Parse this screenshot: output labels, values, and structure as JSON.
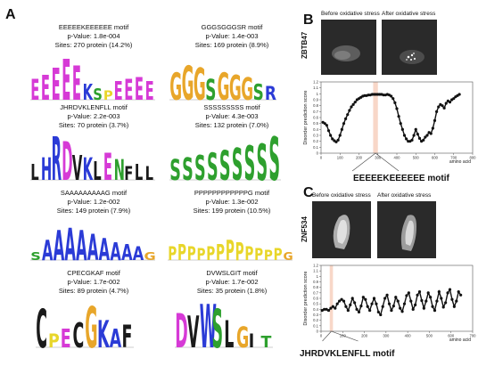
{
  "panel_a": {
    "letter": "A",
    "motifs": [
      {
        "name": "EEEEEKEEEEEE motif",
        "pvalue": "p-Value: 1.8e-004",
        "sites": "Sites: 270 protein (14.2%)",
        "logo": {
          "letters": [
            "E",
            "E",
            "E",
            "E",
            "E",
            "K",
            "S",
            "P",
            "E",
            "E",
            "E",
            "E"
          ],
          "colors": [
            "#d63ad6",
            "#d63ad6",
            "#d63ad6",
            "#d63ad6",
            "#d63ad6",
            "#2b3bd6",
            "#2ea02e",
            "#e8d62a",
            "#d63ad6",
            "#d63ad6",
            "#d63ad6",
            "#d63ad6"
          ],
          "heights": [
            0.45,
            0.55,
            0.7,
            0.9,
            0.75,
            0.35,
            0.25,
            0.2,
            0.4,
            0.45,
            0.5,
            0.4
          ]
        }
      },
      {
        "name": "GGGSGGGSR motif",
        "pvalue": "p-Value: 1.4e-003",
        "sites": "Sites: 169 protein (8.9%)",
        "logo": {
          "letters": [
            "G",
            "G",
            "G",
            "S",
            "G",
            "G",
            "G",
            "S",
            "R"
          ],
          "colors": [
            "#e8a62a",
            "#e8a62a",
            "#e8a62a",
            "#2ea02e",
            "#e8a62a",
            "#e8a62a",
            "#e8a62a",
            "#2ea02e",
            "#2b3bd6"
          ],
          "heights": [
            0.6,
            0.75,
            0.7,
            0.45,
            0.6,
            0.55,
            0.5,
            0.35,
            0.3
          ]
        }
      },
      {
        "name": "JHRDVKLENFLL motif",
        "pvalue": "p-Value: 2.2e-003",
        "sites": "Sites: 70 protein (3.7%)",
        "logo": {
          "letters": [
            "L",
            "H",
            "R",
            "D",
            "V",
            "K",
            "L",
            "E",
            "N",
            "F",
            "L",
            "L"
          ],
          "colors": [
            "#1a1a1a",
            "#2b3bd6",
            "#2b3bd6",
            "#d63ad6",
            "#1a1a1a",
            "#2b3bd6",
            "#1a1a1a",
            "#d63ad6",
            "#2ea02e",
            "#1a1a1a",
            "#1a1a1a",
            "#1a1a1a"
          ],
          "heights": [
            0.35,
            0.5,
            0.95,
            0.85,
            0.55,
            0.5,
            0.4,
            0.6,
            0.45,
            0.3,
            0.35,
            0.3
          ]
        }
      },
      {
        "name": "SSSSSSSSS motif",
        "pvalue": "p-Value: 4.3e-003",
        "sites": "Sites: 132 protein (7.0%)",
        "logo": {
          "letters": [
            "S",
            "S",
            "S",
            "S",
            "S",
            "S",
            "S",
            "S",
            "S"
          ],
          "colors": [
            "#2ea02e",
            "#2ea02e",
            "#2ea02e",
            "#2ea02e",
            "#2ea02e",
            "#2ea02e",
            "#2ea02e",
            "#2ea02e",
            "#2ea02e"
          ],
          "heights": [
            0.45,
            0.5,
            0.55,
            0.6,
            0.65,
            0.7,
            0.75,
            0.8,
            0.95
          ]
        }
      },
      {
        "name": "SAAAAAAAAAG motif",
        "pvalue": "p-Value: 1.2e-002",
        "sites": "Sites: 149 protein (7.9%)",
        "logo": {
          "letters": [
            "S",
            "A",
            "A",
            "A",
            "A",
            "A",
            "A",
            "A",
            "A",
            "A",
            "G"
          ],
          "colors": [
            "#2ea02e",
            "#2b3bd6",
            "#2b3bd6",
            "#2b3bd6",
            "#2b3bd6",
            "#2b3bd6",
            "#2b3bd6",
            "#2b3bd6",
            "#2b3bd6",
            "#2b3bd6",
            "#e8a62a"
          ],
          "heights": [
            0.2,
            0.5,
            0.75,
            0.8,
            0.75,
            0.65,
            0.55,
            0.45,
            0.4,
            0.35,
            0.2
          ]
        }
      },
      {
        "name": "PPPPPPPPPPPPG motif",
        "pvalue": "p-Value: 1.3e-002",
        "sites": "Sites: 199 protein (10.5%)",
        "logo": {
          "letters": [
            "P",
            "P",
            "P",
            "P",
            "P",
            "P",
            "P",
            "P",
            "P",
            "P",
            "P",
            "P",
            "G"
          ],
          "colors": [
            "#e8d62a",
            "#e8d62a",
            "#e8d62a",
            "#e8d62a",
            "#e8d62a",
            "#e8d62a",
            "#e8d62a",
            "#e8d62a",
            "#e8d62a",
            "#e8d62a",
            "#e8d62a",
            "#e8d62a",
            "#e8a62a"
          ],
          "heights": [
            0.35,
            0.4,
            0.35,
            0.3,
            0.35,
            0.4,
            0.5,
            0.45,
            0.35,
            0.3,
            0.25,
            0.3,
            0.2
          ]
        }
      },
      {
        "name": "CPECGKAF motif",
        "pvalue": "p-Value: 1.7e-002",
        "sites": "Sites: 89 protein (4.7%)",
        "logo": {
          "letters": [
            "C",
            "P",
            "E",
            "C",
            "G",
            "K",
            "A",
            "F"
          ],
          "colors": [
            "#1a1a1a",
            "#e8d62a",
            "#d63ad6",
            "#1a1a1a",
            "#e8a62a",
            "#2b3bd6",
            "#2b3bd6",
            "#1a1a1a"
          ],
          "heights": [
            0.85,
            0.3,
            0.4,
            0.55,
            0.9,
            0.6,
            0.4,
            0.5
          ]
        }
      },
      {
        "name": "DVWSLGIT motif",
        "pvalue": "p-Value: 1.7e-002",
        "sites": "Sites: 35 protein (1.8%)",
        "logo": {
          "letters": [
            "D",
            "V",
            "W",
            "S",
            "L",
            "G",
            "I",
            "T"
          ],
          "colors": [
            "#d63ad6",
            "#1a1a1a",
            "#2b3bd6",
            "#2ea02e",
            "#1a1a1a",
            "#e8a62a",
            "#1a1a1a",
            "#2ea02e"
          ],
          "heights": [
            0.75,
            0.7,
            0.95,
            0.85,
            0.6,
            0.45,
            0.3,
            0.25
          ]
        }
      }
    ]
  },
  "panel_b": {
    "letter": "B",
    "before_label": "Before oxidative stress",
    "after_label": "After oxidative stress",
    "gene": "ZBTB47",
    "callout": "EEEEEKEEEEEE motif",
    "chart_data": {
      "type": "scatter",
      "xlabel": "amino acid",
      "ylabel": "Disorder prediction score",
      "xlim": [
        0,
        800
      ],
      "ylim": [
        0,
        1.2
      ],
      "xticks": [
        0,
        100,
        200,
        300,
        400,
        500,
        600,
        700,
        800
      ],
      "yticks": [
        0,
        0.1,
        0.2,
        0.3,
        0.4,
        0.5,
        0.6,
        0.7,
        0.8,
        0.9,
        1,
        1.1,
        1.2
      ],
      "highlight_x": [
        275,
        300
      ],
      "x": [
        10,
        20,
        30,
        40,
        50,
        60,
        70,
        80,
        90,
        100,
        110,
        120,
        130,
        140,
        150,
        160,
        170,
        180,
        190,
        200,
        210,
        220,
        230,
        240,
        250,
        260,
        270,
        280,
        290,
        300,
        310,
        320,
        330,
        340,
        350,
        360,
        370,
        380,
        390,
        400,
        410,
        420,
        430,
        440,
        450,
        460,
        470,
        480,
        490,
        500,
        510,
        520,
        530,
        540,
        550,
        560,
        570,
        580,
        590,
        600,
        610,
        620,
        630,
        640,
        650,
        660,
        670,
        680,
        690,
        700,
        710,
        720,
        730
      ],
      "y": [
        0.52,
        0.5,
        0.47,
        0.38,
        0.3,
        0.24,
        0.21,
        0.19,
        0.22,
        0.3,
        0.4,
        0.5,
        0.58,
        0.65,
        0.72,
        0.78,
        0.82,
        0.86,
        0.9,
        0.92,
        0.94,
        0.96,
        0.97,
        0.97,
        0.98,
        0.98,
        0.99,
        0.99,
        0.99,
        0.99,
        0.99,
        0.99,
        0.98,
        0.98,
        0.99,
        0.98,
        0.96,
        0.92,
        0.85,
        0.75,
        0.62,
        0.5,
        0.4,
        0.3,
        0.24,
        0.2,
        0.2,
        0.22,
        0.3,
        0.4,
        0.32,
        0.25,
        0.2,
        0.22,
        0.27,
        0.3,
        0.35,
        0.33,
        0.42,
        0.55,
        0.7,
        0.78,
        0.82,
        0.8,
        0.76,
        0.84,
        0.88,
        0.86,
        0.9,
        0.92,
        0.95,
        0.97,
        0.99
      ]
    }
  },
  "panel_c": {
    "letter": "C",
    "before_label": "Before oxidative stress",
    "after_label": "After oxidative stress",
    "gene": "ZNF534",
    "callout": "JHRDVKLENFLL motif",
    "chart_data": {
      "type": "scatter",
      "xlabel": "amino acid",
      "ylabel": "Disorder prediction score",
      "xlim": [
        0,
        700
      ],
      "ylim": [
        0,
        1.2
      ],
      "xticks": [
        0,
        100,
        200,
        300,
        400,
        500,
        600,
        700
      ],
      "yticks": [
        0,
        0.1,
        0.2,
        0.3,
        0.4,
        0.5,
        0.6,
        0.7,
        0.8,
        0.9,
        1,
        1.1,
        1.2
      ],
      "highlight_x": [
        40,
        55
      ],
      "x": [
        5,
        15,
        25,
        35,
        45,
        55,
        65,
        75,
        85,
        95,
        105,
        115,
        125,
        135,
        145,
        155,
        165,
        175,
        185,
        195,
        205,
        215,
        225,
        235,
        245,
        255,
        265,
        275,
        285,
        295,
        305,
        315,
        325,
        335,
        345,
        355,
        365,
        375,
        385,
        395,
        405,
        415,
        425,
        435,
        445,
        455,
        465,
        475,
        485,
        495,
        505,
        515,
        525,
        535,
        545,
        555,
        565,
        575,
        585,
        595,
        605,
        615,
        625,
        635,
        645
      ],
      "y": [
        0.38,
        0.4,
        0.4,
        0.38,
        0.42,
        0.45,
        0.42,
        0.5,
        0.55,
        0.58,
        0.55,
        0.45,
        0.38,
        0.48,
        0.6,
        0.52,
        0.4,
        0.35,
        0.46,
        0.62,
        0.58,
        0.45,
        0.38,
        0.5,
        0.6,
        0.5,
        0.35,
        0.3,
        0.45,
        0.6,
        0.66,
        0.5,
        0.38,
        0.46,
        0.62,
        0.55,
        0.42,
        0.36,
        0.5,
        0.65,
        0.7,
        0.55,
        0.4,
        0.48,
        0.66,
        0.72,
        0.56,
        0.42,
        0.55,
        0.7,
        0.62,
        0.45,
        0.38,
        0.55,
        0.72,
        0.6,
        0.44,
        0.52,
        0.7,
        0.76,
        0.58,
        0.45,
        0.55,
        0.72,
        0.66
      ]
    }
  }
}
